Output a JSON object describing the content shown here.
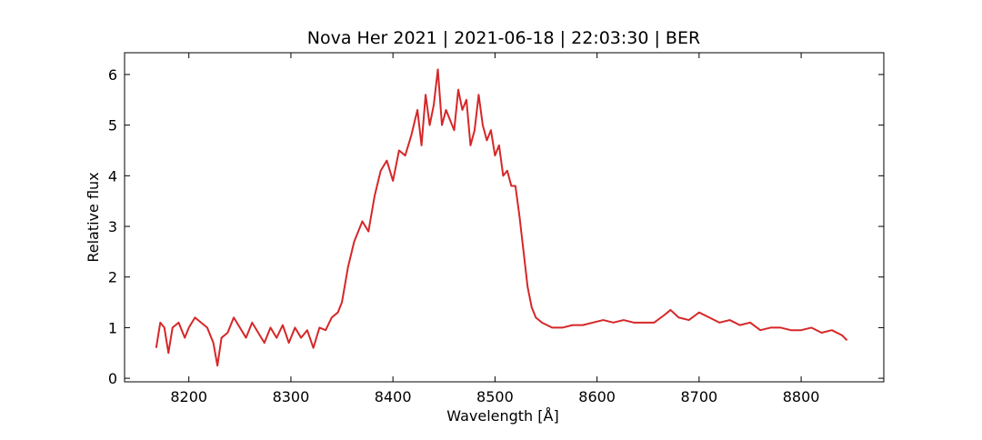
{
  "chart_data": {
    "type": "line",
    "title": "Nova Her 2021 | 2021-06-18 | 22:03:30 | BER",
    "x_label": "Wavelength [Å]",
    "y_label": "Relative flux",
    "color": "#d62728",
    "x": [
      8168,
      8172,
      8176,
      8180,
      8184,
      8190,
      8196,
      8200,
      8206,
      8212,
      8218,
      8224,
      8228,
      8232,
      8238,
      8244,
      8250,
      8256,
      8262,
      8268,
      8274,
      8280,
      8286,
      8292,
      8298,
      8304,
      8310,
      8316,
      8322,
      8328,
      8334,
      8340,
      8346,
      8350,
      8356,
      8362,
      8366,
      8370,
      8376,
      8382,
      8388,
      8394,
      8400,
      8406,
      8412,
      8418,
      8424,
      8428,
      8432,
      8436,
      8440,
      8444,
      8448,
      8452,
      8456,
      8460,
      8464,
      8468,
      8472,
      8476,
      8480,
      8484,
      8488,
      8492,
      8496,
      8500,
      8504,
      8508,
      8512,
      8516,
      8520,
      8524,
      8528,
      8532,
      8536,
      8540,
      8546,
      8556,
      8566,
      8576,
      8586,
      8596,
      8606,
      8616,
      8626,
      8636,
      8646,
      8656,
      8666,
      8672,
      8680,
      8690,
      8700,
      8710,
      8720,
      8730,
      8740,
      8750,
      8760,
      8770,
      8780,
      8790,
      8800,
      8810,
      8820,
      8830,
      8840,
      8845
    ],
    "values": [
      0.6,
      1.1,
      1.0,
      0.5,
      1.0,
      1.1,
      0.8,
      1.0,
      1.2,
      1.1,
      1.0,
      0.7,
      0.25,
      0.8,
      0.9,
      1.2,
      1.0,
      0.8,
      1.1,
      0.9,
      0.7,
      1.0,
      0.8,
      1.05,
      0.7,
      1.0,
      0.8,
      0.95,
      0.6,
      1.0,
      0.95,
      1.2,
      1.3,
      1.5,
      2.2,
      2.7,
      2.9,
      3.1,
      2.9,
      3.6,
      4.1,
      4.3,
      3.9,
      4.5,
      4.4,
      4.8,
      5.3,
      4.6,
      5.6,
      5.0,
      5.4,
      6.1,
      5.0,
      5.3,
      5.1,
      4.9,
      5.7,
      5.3,
      5.5,
      4.6,
      4.9,
      5.6,
      5.0,
      4.7,
      4.9,
      4.4,
      4.6,
      4.0,
      4.1,
      3.8,
      3.8,
      3.2,
      2.5,
      1.8,
      1.4,
      1.2,
      1.1,
      1.0,
      1.0,
      1.05,
      1.05,
      1.1,
      1.15,
      1.1,
      1.15,
      1.1,
      1.1,
      1.1,
      1.25,
      1.35,
      1.2,
      1.15,
      1.3,
      1.2,
      1.1,
      1.15,
      1.05,
      1.1,
      0.95,
      1.0,
      1.0,
      0.95,
      0.95,
      1.0,
      0.9,
      0.95,
      0.85,
      0.75
    ],
    "xlim": [
      8137,
      8881
    ],
    "ylim": [
      -0.07,
      6.43
    ],
    "xticks": [
      8200,
      8300,
      8400,
      8500,
      8600,
      8700,
      8800
    ],
    "yticks": [
      0,
      1,
      2,
      3,
      4,
      5,
      6
    ]
  }
}
